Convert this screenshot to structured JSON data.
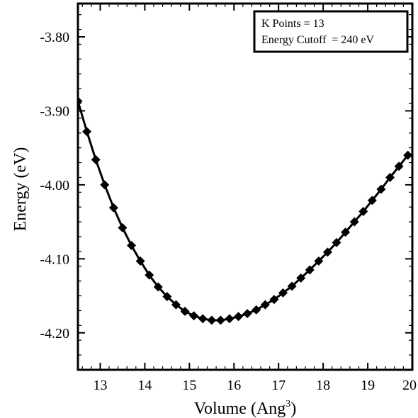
{
  "chart_data": {
    "type": "line",
    "title": "",
    "xlabel": "Volume (Ang",
    "xlabel_sup": "3",
    "xlabel_close": ")",
    "ylabel": "Energy (eV)",
    "xlim": [
      12.5,
      20.0
    ],
    "ylim": [
      -4.25,
      -3.755
    ],
    "x_ticks": [
      13,
      14,
      15,
      16,
      17,
      18,
      19,
      20
    ],
    "x_tick_labels": [
      "13",
      "14",
      "15",
      "16",
      "17",
      "18",
      "19",
      "20"
    ],
    "y_ticks": [
      -3.8,
      -3.9,
      -4.0,
      -4.1,
      -4.2
    ],
    "y_tick_labels": [
      "-3.80",
      "-3.90",
      "-4.00",
      "-4.10",
      "-4.20"
    ],
    "grid": false,
    "legend_position": "top-right",
    "annotation_lines": [
      "K Points = 13",
      "Energy Cutoff  = 240 eV"
    ],
    "marker": "diamond",
    "line_color": "#000000",
    "marker_color": "#000000",
    "series": [
      {
        "x": [
          12.5,
          12.7,
          12.9,
          13.1,
          13.3,
          13.5,
          13.7,
          13.9,
          14.1,
          14.3,
          14.5,
          14.7,
          14.9,
          15.1,
          15.3,
          15.5,
          15.7,
          15.9,
          16.1,
          16.3,
          16.5,
          16.7,
          16.9,
          17.1,
          17.3,
          17.5,
          17.7,
          17.9,
          18.1,
          18.3,
          18.5,
          18.7,
          18.9,
          19.1,
          19.3,
          19.5,
          19.7,
          19.9
        ],
        "y": [
          -3.887,
          -3.928,
          -3.966,
          -4.0,
          -4.031,
          -4.058,
          -4.082,
          -4.103,
          -4.122,
          -4.138,
          -4.151,
          -4.162,
          -4.171,
          -4.177,
          -4.181,
          -4.183,
          -4.183,
          -4.181,
          -4.178,
          -4.174,
          -4.169,
          -4.162,
          -4.155,
          -4.146,
          -4.137,
          -4.126,
          -4.115,
          -4.103,
          -4.091,
          -4.078,
          -4.064,
          -4.05,
          -4.036,
          -4.021,
          -4.006,
          -3.99,
          -3.975,
          -3.96
        ]
      }
    ]
  }
}
